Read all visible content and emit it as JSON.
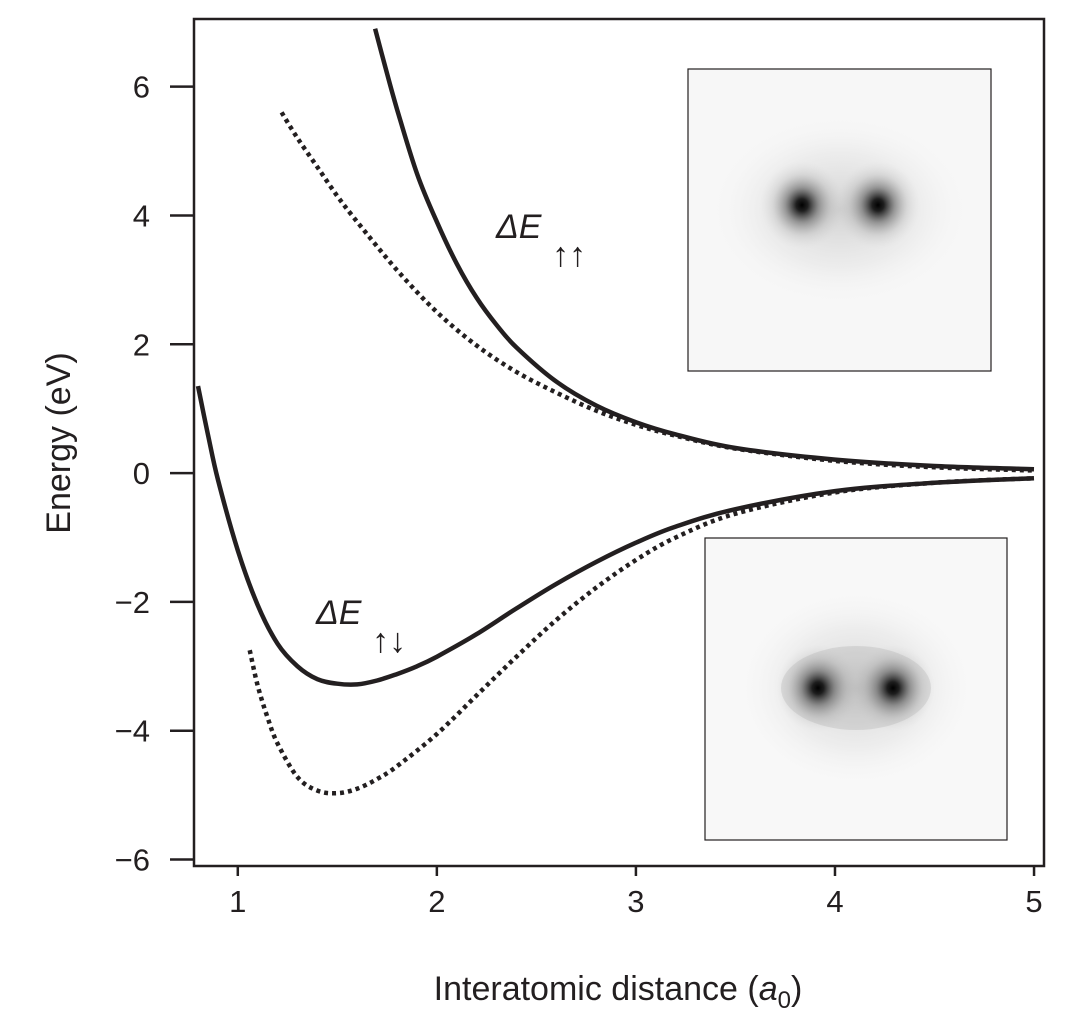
{
  "chart_data": {
    "type": "line",
    "title": "",
    "xlabel": "Interatomic distance (",
    "xlabel_sym": "a",
    "xlabel_sub": "0",
    "xlabel_close": ")",
    "ylabel": "Energy (eV)",
    "xlim": [
      0.78,
      5.05
    ],
    "ylim": [
      -6.1,
      7.05
    ],
    "xticks": [
      1,
      2,
      3,
      4,
      5
    ],
    "xtick_labels": [
      "1",
      "2",
      "3",
      "4",
      "5"
    ],
    "yticks": [
      6,
      4,
      2,
      0,
      -2,
      -4,
      -6
    ],
    "ytick_labels": [
      "6",
      "4",
      "2",
      "0",
      "−2",
      "−4",
      "−6"
    ],
    "grid": false,
    "line_color": "#231f20",
    "series": [
      {
        "style": "solid",
        "x": [
          1.69,
          1.75,
          1.8,
          1.9,
          2.0,
          2.1,
          2.2,
          2.3,
          2.4,
          2.6,
          2.8,
          3.0,
          3.2,
          3.5,
          4.0,
          4.5,
          5.0
        ],
        "y": [
          6.9,
          6.2,
          5.65,
          4.65,
          3.9,
          3.25,
          2.72,
          2.3,
          1.95,
          1.42,
          1.05,
          0.79,
          0.6,
          0.39,
          0.21,
          0.11,
          0.06
        ]
      },
      {
        "style": "dotted",
        "x": [
          1.22,
          1.3,
          1.4,
          1.5,
          1.6,
          1.8,
          2.0,
          2.2,
          2.4,
          2.6,
          2.8,
          3.0,
          3.2,
          3.5,
          4.0,
          4.5,
          5.0
        ],
        "y": [
          5.6,
          5.2,
          4.75,
          4.3,
          3.9,
          3.15,
          2.5,
          1.98,
          1.57,
          1.25,
          0.97,
          0.75,
          0.58,
          0.38,
          0.19,
          0.09,
          0.04
        ]
      },
      {
        "style": "solid",
        "x": [
          0.8,
          0.85,
          0.9,
          1.0,
          1.1,
          1.2,
          1.3,
          1.4,
          1.5,
          1.6,
          1.7,
          1.8,
          1.9,
          2.0,
          2.2,
          2.4,
          2.6,
          2.8,
          3.0,
          3.2,
          3.5,
          4.0,
          4.5,
          5.0
        ],
        "y": [
          1.35,
          0.6,
          -0.1,
          -1.2,
          -2.05,
          -2.65,
          -3.0,
          -3.2,
          -3.27,
          -3.28,
          -3.22,
          -3.12,
          -3.0,
          -2.85,
          -2.5,
          -2.1,
          -1.72,
          -1.38,
          -1.08,
          -0.83,
          -0.56,
          -0.28,
          -0.15,
          -0.08
        ]
      },
      {
        "style": "dotted",
        "x": [
          1.06,
          1.1,
          1.15,
          1.2,
          1.3,
          1.4,
          1.5,
          1.6,
          1.7,
          1.8,
          2.0,
          2.2,
          2.4,
          2.6,
          2.8,
          3.0,
          3.2,
          3.5,
          4.0,
          4.5,
          5.0
        ],
        "y": [
          -2.75,
          -3.3,
          -3.8,
          -4.2,
          -4.72,
          -4.93,
          -4.97,
          -4.9,
          -4.75,
          -4.55,
          -4.05,
          -3.45,
          -2.85,
          -2.28,
          -1.78,
          -1.35,
          -1.0,
          -0.63,
          -0.3,
          -0.15,
          -0.08
        ]
      }
    ],
    "annotations": [
      {
        "base": "ΔE",
        "sub": "↑↑"
      },
      {
        "base": "ΔE",
        "sub": "↑↓"
      }
    ]
  },
  "insets": [
    {
      "description_name": "triplet-density-inset"
    },
    {
      "description_name": "singlet-density-inset"
    }
  ]
}
